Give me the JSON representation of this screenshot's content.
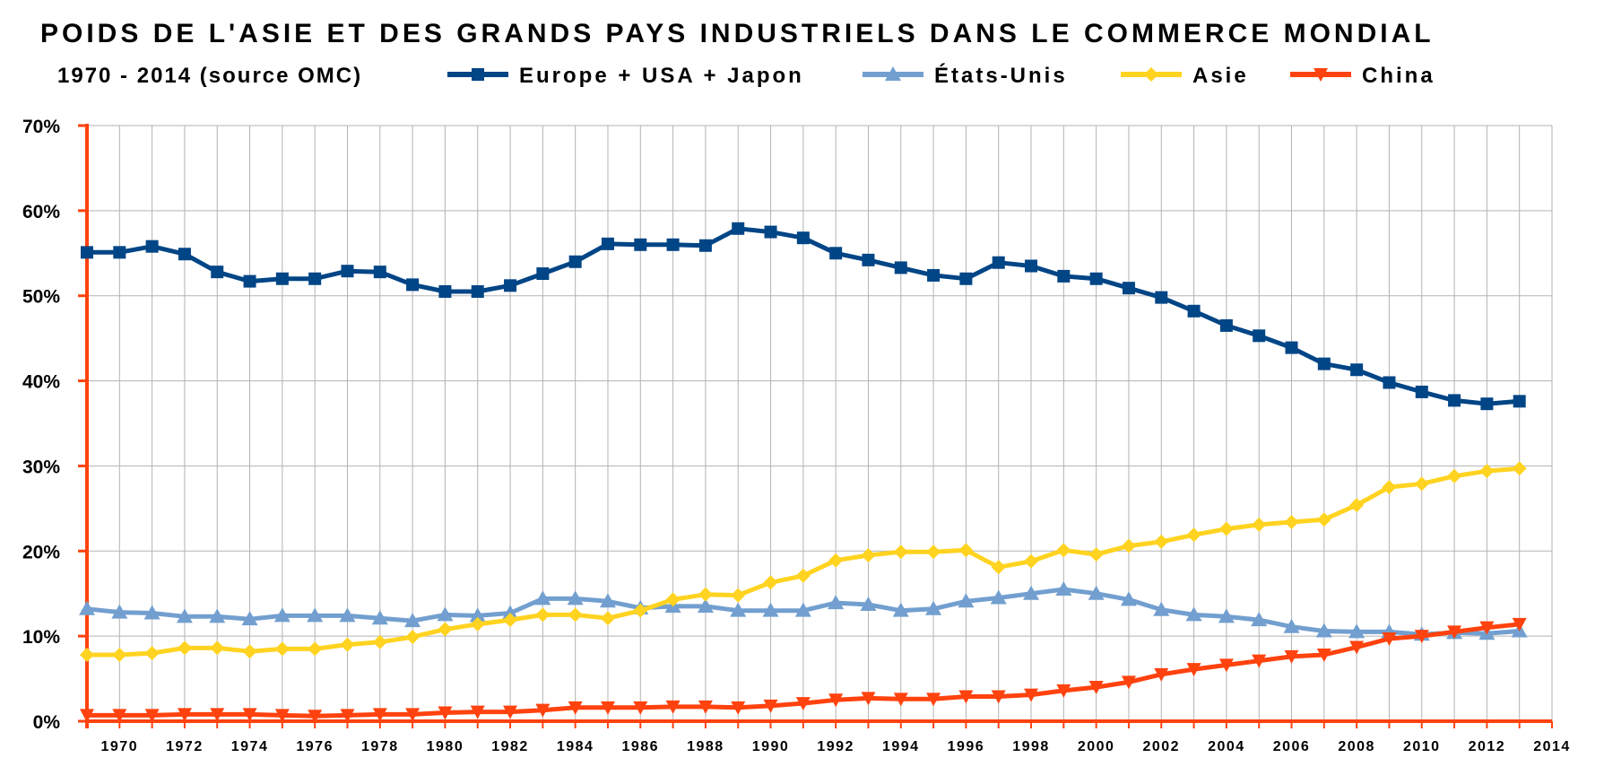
{
  "chart_data": {
    "type": "line",
    "title": "POIDS DE L'ASIE ET DES GRANDS PAYS INDUSTRIELS DANS LE COMMERCE MONDIAL",
    "subtitle": "1970 - 2014 (source OMC)",
    "xlabel": "",
    "ylabel": "",
    "ylim": [
      0,
      70
    ],
    "y_ticks": [
      "0%",
      "10%",
      "20%",
      "30%",
      "40%",
      "50%",
      "60%",
      "70%"
    ],
    "x_ticks": [
      "1970",
      "1972",
      "1974",
      "1976",
      "1978",
      "1980",
      "1982",
      "1984",
      "1986",
      "1988",
      "1990",
      "1992",
      "1994",
      "1996",
      "1998",
      "2000",
      "2002",
      "2004",
      "2006",
      "2008",
      "2010",
      "2012",
      "2014"
    ],
    "grid": true,
    "legend_position": "top",
    "x": [
      1969,
      1970,
      1971,
      1972,
      1973,
      1974,
      1975,
      1976,
      1977,
      1978,
      1979,
      1980,
      1981,
      1982,
      1983,
      1984,
      1985,
      1986,
      1987,
      1988,
      1989,
      1990,
      1991,
      1992,
      1993,
      1994,
      1995,
      1996,
      1997,
      1998,
      1999,
      2000,
      2001,
      2002,
      2003,
      2004,
      2005,
      2006,
      2007,
      2008,
      2009,
      2010,
      2011,
      2012,
      2013
    ],
    "series": [
      {
        "name": "Europe + USA + Japon",
        "color": "#004586",
        "marker": "square",
        "values": [
          55.1,
          55.1,
          55.8,
          54.9,
          52.8,
          51.7,
          52.0,
          52.0,
          52.9,
          52.8,
          51.3,
          50.5,
          50.5,
          51.2,
          52.6,
          54.0,
          56.1,
          56.0,
          56.0,
          55.9,
          57.9,
          57.5,
          56.8,
          55.0,
          54.2,
          53.3,
          52.4,
          52.0,
          53.9,
          53.5,
          52.3,
          52.0,
          50.9,
          49.8,
          48.2,
          46.5,
          45.3,
          43.9,
          42.0,
          41.3,
          39.8,
          38.7,
          37.7,
          37.3,
          37.6
        ]
      },
      {
        "name": "États-Unis",
        "color": "#729fcf",
        "marker": "triangle-up",
        "values": [
          13.2,
          12.8,
          12.7,
          12.3,
          12.3,
          12.0,
          12.4,
          12.4,
          12.4,
          12.1,
          11.8,
          12.5,
          12.4,
          12.7,
          14.4,
          14.4,
          14.1,
          13.3,
          13.5,
          13.5,
          13.0,
          13.0,
          13.0,
          13.9,
          13.7,
          13.0,
          13.2,
          14.1,
          14.5,
          15.0,
          15.5,
          15.0,
          14.3,
          13.1,
          12.5,
          12.3,
          11.9,
          11.1,
          10.6,
          10.5,
          10.5,
          10.2,
          10.4,
          10.3,
          10.6
        ]
      },
      {
        "name": "Asie",
        "color": "#ffd320",
        "marker": "diamond",
        "values": [
          7.8,
          7.8,
          8.0,
          8.6,
          8.6,
          8.2,
          8.5,
          8.5,
          9.0,
          9.3,
          9.9,
          10.8,
          11.4,
          11.9,
          12.5,
          12.5,
          12.1,
          13.0,
          14.3,
          14.9,
          14.8,
          16.3,
          17.1,
          18.9,
          19.5,
          19.9,
          19.9,
          20.1,
          18.1,
          18.8,
          20.1,
          19.6,
          20.6,
          21.1,
          21.9,
          22.6,
          23.1,
          23.4,
          23.7,
          25.4,
          27.5,
          27.9,
          28.8,
          29.4,
          29.7
        ]
      },
      {
        "name": "China",
        "color": "#ff420e",
        "marker": "triangle-down",
        "values": [
          0.7,
          0.7,
          0.7,
          0.8,
          0.8,
          0.8,
          0.7,
          0.6,
          0.7,
          0.8,
          0.8,
          1.0,
          1.1,
          1.1,
          1.3,
          1.6,
          1.6,
          1.6,
          1.7,
          1.7,
          1.6,
          1.8,
          2.1,
          2.5,
          2.7,
          2.6,
          2.6,
          2.9,
          2.9,
          3.1,
          3.6,
          4.0,
          4.6,
          5.5,
          6.1,
          6.6,
          7.1,
          7.6,
          7.8,
          8.7,
          9.7,
          10.0,
          10.5,
          11.0,
          11.4
        ]
      }
    ]
  }
}
